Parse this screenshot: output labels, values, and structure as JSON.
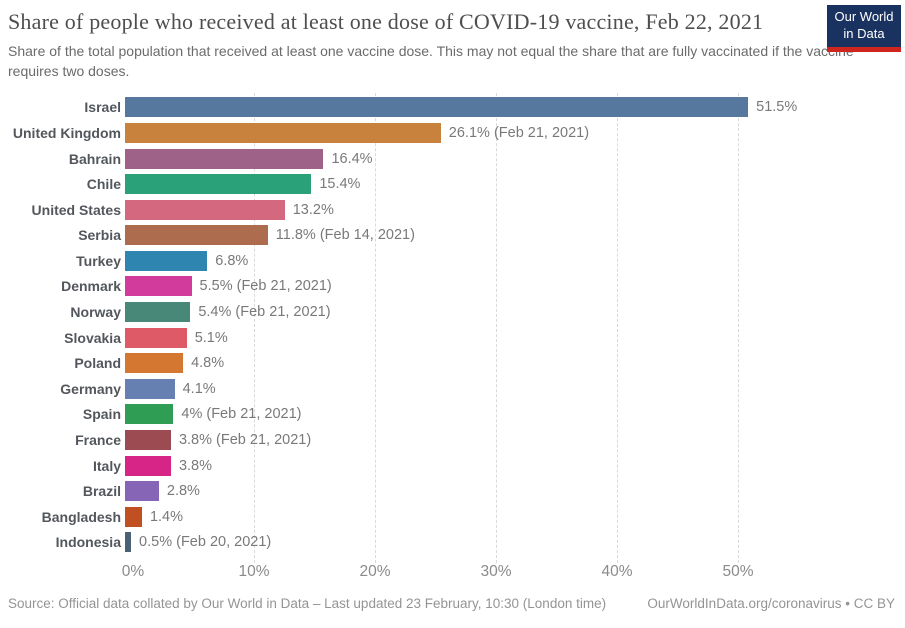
{
  "header": {
    "title": "Share of people who received at least one dose of COVID-19 vaccine, Feb 22, 2021",
    "subtitle": "Share of the total population that received at least one vaccine dose. This may not equal the share that are fully vaccinated if the vaccine requires two doses.",
    "logo": {
      "line1": "Our World",
      "line2": "in Data",
      "bg_color": "#1a3260",
      "accent_color": "#ce261e"
    }
  },
  "chart_data": {
    "type": "bar",
    "orientation": "horizontal",
    "title": "Share of people who received at least one dose of COVID-19 vaccine, Feb 22, 2021",
    "xlabel": "",
    "ylabel": "",
    "xlim": [
      0,
      55
    ],
    "grid": "vertical-dashed",
    "x_ticks": [
      "0%",
      "10%",
      "20%",
      "30%",
      "40%",
      "50%"
    ],
    "x_tick_values": [
      0,
      10,
      20,
      30,
      40,
      50
    ],
    "categories": [
      "Israel",
      "United Kingdom",
      "Bahrain",
      "Chile",
      "United States",
      "Serbia",
      "Turkey",
      "Denmark",
      "Norway",
      "Slovakia",
      "Poland",
      "Germany",
      "Spain",
      "France",
      "Italy",
      "Brazil",
      "Bangladesh",
      "Indonesia"
    ],
    "values": [
      51.5,
      26.1,
      16.4,
      15.4,
      13.2,
      11.8,
      6.8,
      5.5,
      5.4,
      5.1,
      4.8,
      4.1,
      4,
      3.8,
      3.8,
      2.8,
      1.4,
      0.5
    ],
    "value_labels": [
      "51.5%",
      "26.1% (Feb 21, 2021)",
      "16.4%",
      "15.4%",
      "13.2%",
      "11.8% (Feb 14, 2021)",
      "6.8%",
      "5.5% (Feb 21, 2021)",
      "5.4% (Feb 21, 2021)",
      "5.1%",
      "4.8%",
      "4.1%",
      "4% (Feb 21, 2021)",
      "3.8% (Feb 21, 2021)",
      "3.8%",
      "2.8%",
      "1.4%",
      "0.5% (Feb 20, 2021)"
    ],
    "colors": [
      "#56789f",
      "#c9823d",
      "#9e6289",
      "#2aa179",
      "#d4687e",
      "#ad6c4d",
      "#2e86b0",
      "#d23b9c",
      "#478879",
      "#df5a67",
      "#d37731",
      "#6680b2",
      "#2f9e54",
      "#9b4b51",
      "#d62487",
      "#8765b6",
      "#c04f21",
      "#4a6175"
    ]
  },
  "footer": {
    "source": "Source: Official data collated by Our World in Data – Last updated 23 February, 10:30 (London time)",
    "license": "OurWorldInData.org/coronavirus • CC BY"
  }
}
